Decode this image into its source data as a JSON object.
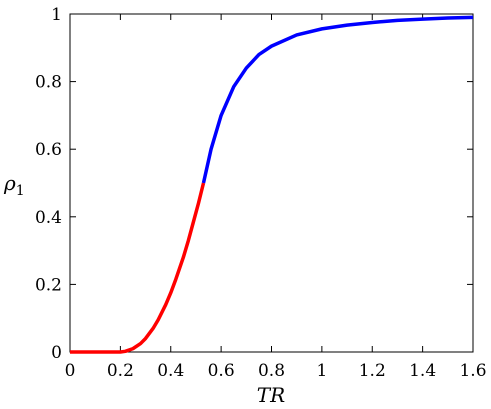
{
  "chart_data": {
    "type": "line",
    "title": "",
    "xlabel": "TR",
    "ylabel_main": "ρ",
    "ylabel_sub": "1",
    "xlim": [
      0,
      1.6
    ],
    "ylim": [
      0,
      1
    ],
    "grid": false,
    "xticks": [
      0,
      0.2,
      0.4,
      0.6,
      0.8,
      1,
      1.2,
      1.4,
      1.6
    ],
    "xtick_labels": [
      "0",
      "0.2",
      "0.4",
      "0.6",
      "0.8",
      "1",
      "1.2",
      "1.4",
      "1.6"
    ],
    "yticks": [
      0,
      0.2,
      0.4,
      0.6,
      0.8,
      1
    ],
    "ytick_labels": [
      "0",
      "0.2",
      "0.4",
      "0.6",
      "0.8",
      "1"
    ],
    "series": [
      {
        "color": "#ff0000",
        "x": [
          0,
          0.1,
          0.2,
          0.22,
          0.25,
          0.28,
          0.3,
          0.33,
          0.35,
          0.38,
          0.4,
          0.42,
          0.45,
          0.47,
          0.49,
          0.51,
          0.53
        ],
        "y": [
          0,
          0,
          0,
          0.002,
          0.01,
          0.025,
          0.04,
          0.07,
          0.095,
          0.14,
          0.175,
          0.215,
          0.28,
          0.33,
          0.385,
          0.44,
          0.5
        ]
      },
      {
        "color": "#0000ff",
        "x": [
          0.53,
          0.56,
          0.6,
          0.65,
          0.7,
          0.75,
          0.8,
          0.9,
          1.0,
          1.1,
          1.2,
          1.3,
          1.4,
          1.5,
          1.6
        ],
        "y": [
          0.5,
          0.6,
          0.7,
          0.785,
          0.84,
          0.88,
          0.905,
          0.938,
          0.956,
          0.967,
          0.975,
          0.981,
          0.985,
          0.988,
          0.99
        ]
      }
    ]
  }
}
